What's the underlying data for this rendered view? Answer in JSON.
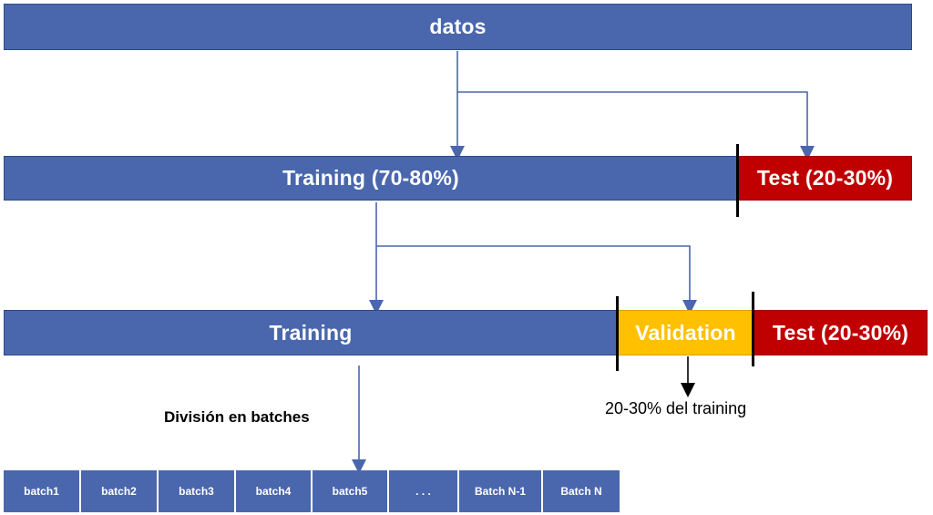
{
  "top": {
    "label": "datos"
  },
  "split1": {
    "training_label": "Training (70-80%)",
    "test_label": "Test (20-30%)"
  },
  "split2": {
    "training_label": "Training",
    "validation_label": "Validation",
    "test_label": "Test (20-30%)"
  },
  "validation_note": "20-30% del training",
  "batches": {
    "title": "División en batches",
    "items": [
      "batch1",
      "batch2",
      "batch3",
      "batch4",
      "batch5",
      ". . .",
      "Batch N-1",
      "Batch N"
    ]
  },
  "colors": {
    "blue": "#4a67ad",
    "red": "#c00000",
    "yellow": "#ffc000",
    "arrow": "#4a67ad"
  }
}
